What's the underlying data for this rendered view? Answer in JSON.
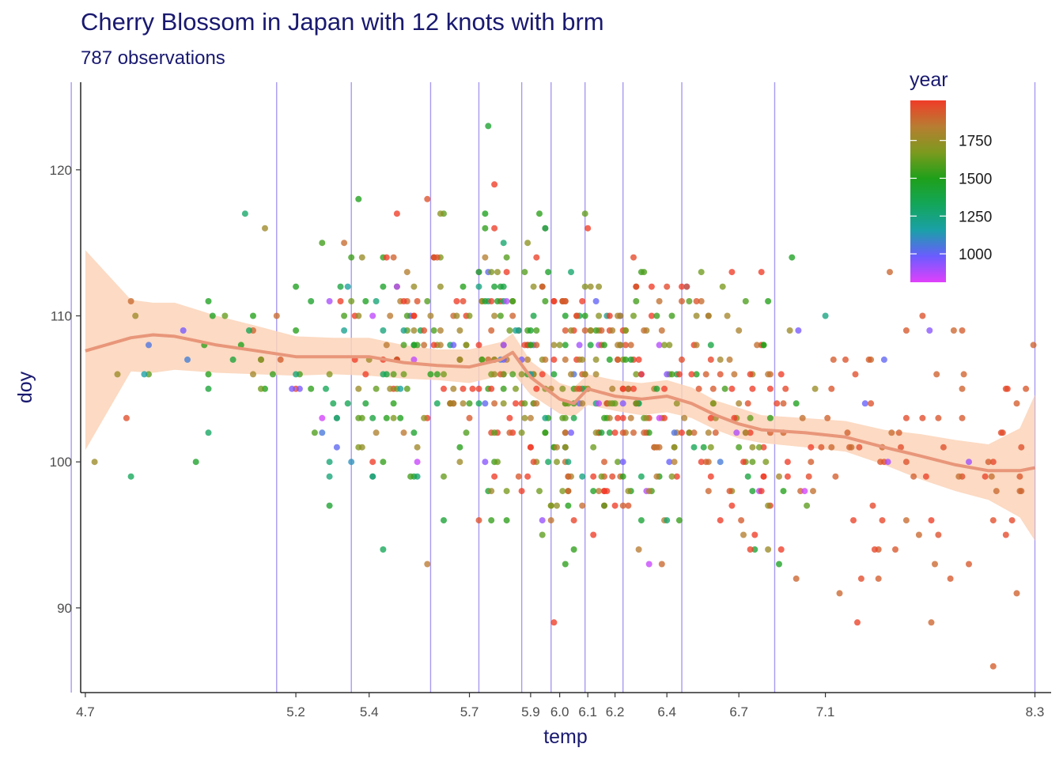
{
  "chart_data": {
    "type": "scatter",
    "title": "Cherry Blossom in Japan with 12 knots with brm",
    "subtitle": "787 observations",
    "xlabel": "temp",
    "ylabel": "doy",
    "xlim": [
      4.69,
      8.41
    ],
    "ylim": [
      84.2,
      126.0
    ],
    "x_ticks": [
      4.7,
      5.2,
      5.4,
      5.7,
      5.9,
      6.0,
      6.1,
      6.2,
      6.4,
      6.7,
      7.1,
      8.3
    ],
    "x_tick_labels": [
      "4.7",
      "5.2",
      "5.4",
      "5.7",
      "5.9",
      "6.0",
      "6.1",
      "6.2",
      "6.4",
      "6.7",
      "7.1",
      "8.3"
    ],
    "y_ticks": [
      90,
      100,
      110,
      120
    ],
    "y_tick_labels": [
      "90",
      "100",
      "110",
      "120"
    ],
    "knots": [
      4.67,
      5.15,
      5.35,
      5.58,
      5.73,
      5.87,
      5.97,
      6.09,
      6.23,
      6.46,
      6.86,
      8.3
    ],
    "grid": false,
    "legend": {
      "title": "year",
      "position": "top-right",
      "type": "colorbar",
      "range": [
        812,
        2015
      ],
      "breaks": [
        1750,
        1500,
        1250,
        1000
      ],
      "break_labels": [
        "1750",
        "1500",
        "1250",
        "1000"
      ],
      "colors": [
        "#e040fb",
        "#6b5cff",
        "#1aa0a8",
        "#13a65a",
        "#1fa01a",
        "#7c9a1e",
        "#b87d32",
        "#f03c28"
      ]
    },
    "fit": {
      "color": "#e8967a",
      "ribbon_color": "#fbd4b8",
      "x": [
        4.7,
        4.8,
        4.85,
        4.9,
        5.0,
        5.1,
        5.2,
        5.3,
        5.4,
        5.5,
        5.6,
        5.7,
        5.8,
        5.84,
        5.9,
        6.0,
        6.05,
        6.1,
        6.2,
        6.3,
        6.4,
        6.5,
        6.6,
        6.7,
        6.8,
        7.0,
        7.2,
        7.4,
        7.6,
        7.8,
        8.0,
        8.2,
        8.3
      ],
      "y": [
        107.6,
        108.5,
        108.7,
        108.6,
        108.0,
        107.6,
        107.2,
        107.2,
        107.2,
        106.8,
        106.6,
        106.5,
        107.0,
        107.5,
        105.8,
        104.3,
        104.0,
        105.0,
        104.5,
        104.3,
        104.5,
        104.0,
        103.2,
        102.6,
        102.2,
        102.0,
        101.7,
        101.0,
        100.4,
        99.8,
        99.4,
        99.4,
        99.6
      ],
      "lower": [
        100.8,
        106.2,
        106.1,
        106.3,
        106.1,
        106.0,
        105.9,
        106.0,
        105.9,
        105.7,
        105.6,
        105.4,
        105.9,
        106.1,
        104.6,
        103.3,
        103.1,
        103.9,
        103.5,
        103.2,
        103.4,
        103.0,
        102.2,
        101.6,
        101.3,
        101.0,
        100.7,
        99.8,
        98.8,
        98.0,
        97.4,
        96.2,
        94.6
      ],
      "upper": [
        114.5,
        111.1,
        110.9,
        110.9,
        110.0,
        109.3,
        108.6,
        108.5,
        108.5,
        108.0,
        107.7,
        107.7,
        108.2,
        108.8,
        106.9,
        105.4,
        105.1,
        106.0,
        105.6,
        105.4,
        105.6,
        105.1,
        104.2,
        103.7,
        103.2,
        103.0,
        102.8,
        102.2,
        101.9,
        101.5,
        101.2,
        102.3,
        104.6
      ]
    }
  }
}
